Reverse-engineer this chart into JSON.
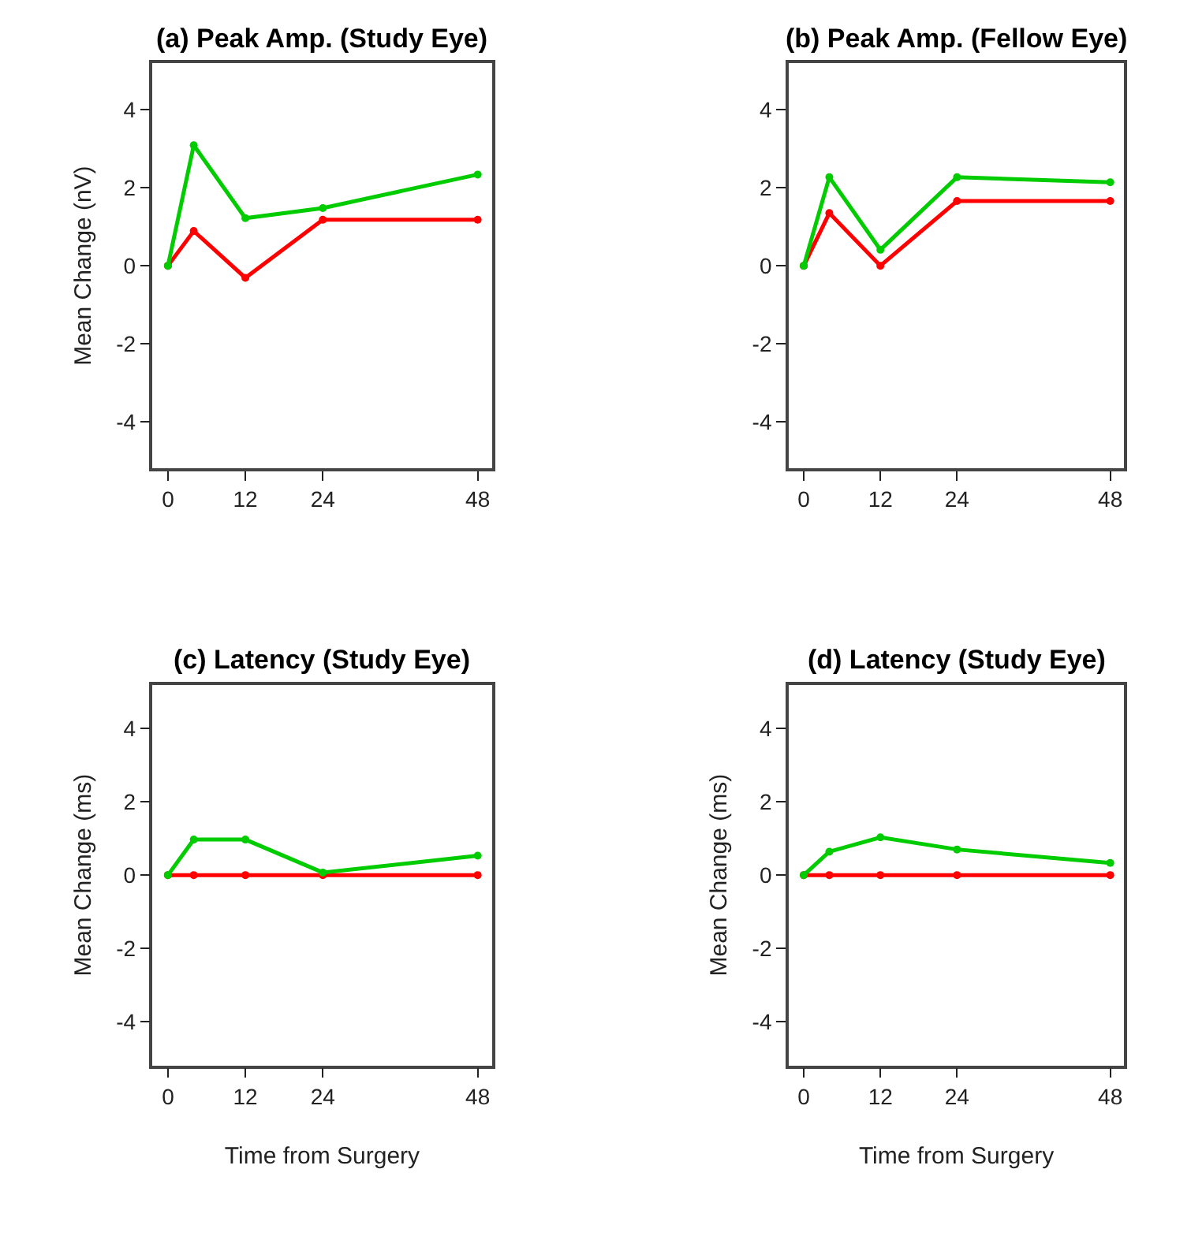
{
  "chart_data": [
    {
      "type": "line",
      "title": "(a) Peak Amp. (Study Eye)",
      "ylabel": "Mean Change (nV)",
      "x": [
        0,
        4,
        12,
        24,
        48
      ],
      "marker": "circle",
      "line_style": "solid",
      "xlim": [
        -2.4,
        50.2
      ],
      "ylim": [
        -5.2,
        5.2
      ],
      "xticks": [
        0,
        12,
        24,
        48
      ],
      "yticks": [
        -4,
        -2,
        0,
        2,
        4
      ],
      "series": [
        {
          "color": "#ff0000",
          "values": [
            0,
            0.89,
            -0.31,
            1.18,
            1.18
          ]
        },
        {
          "color": "#00cc00",
          "values": [
            0,
            3.09,
            1.22,
            1.48,
            2.34
          ]
        }
      ]
    },
    {
      "type": "line",
      "title": "(b) Peak Amp. (Fellow Eye)",
      "x": [
        0,
        4,
        12,
        24,
        48
      ],
      "marker": "circle",
      "line_style": "solid",
      "xlim": [
        -2.4,
        50.2
      ],
      "ylim": [
        -5.2,
        5.2
      ],
      "xticks": [
        0,
        12,
        24,
        48
      ],
      "yticks": [
        -4,
        -2,
        0,
        2,
        4
      ],
      "series": [
        {
          "color": "#ff0000",
          "values": [
            0,
            1.35,
            0,
            1.66,
            1.66
          ]
        },
        {
          "color": "#00cc00",
          "values": [
            0,
            2.27,
            0.41,
            2.27,
            2.14
          ]
        }
      ]
    },
    {
      "type": "line",
      "title": "(c) Latency (Study Eye)",
      "xlabel": "Time from Surgery",
      "ylabel": "Mean Change (ms)",
      "x": [
        0,
        4,
        12,
        24,
        48
      ],
      "marker": "circle",
      "line_style": "solid",
      "xlim": [
        -2.4,
        50.2
      ],
      "ylim": [
        -5.2,
        5.2
      ],
      "xticks": [
        0,
        12,
        24,
        48
      ],
      "yticks": [
        -4,
        -2,
        0,
        2,
        4
      ],
      "series": [
        {
          "color": "#ff0000",
          "values": [
            0,
            0,
            0,
            0,
            0
          ]
        },
        {
          "color": "#00cc00",
          "values": [
            0,
            0.97,
            0.97,
            0.07,
            0.53
          ]
        }
      ]
    },
    {
      "type": "line",
      "title": "(d) Latency (Study Eye)",
      "xlabel": "Time from Surgery",
      "ylabel": "Mean Change (ms)",
      "x": [
        0,
        4,
        12,
        24,
        48
      ],
      "marker": "circle",
      "line_style": "solid",
      "xlim": [
        -2.4,
        50.2
      ],
      "ylim": [
        -5.2,
        5.2
      ],
      "xticks": [
        0,
        12,
        24,
        48
      ],
      "yticks": [
        -4,
        -2,
        0,
        2,
        4
      ],
      "series": [
        {
          "color": "#ff0000",
          "values": [
            0,
            0,
            0,
            0,
            0
          ]
        },
        {
          "color": "#00cc00",
          "values": [
            0,
            0.64,
            1.03,
            0.7,
            0.33
          ]
        }
      ]
    }
  ]
}
